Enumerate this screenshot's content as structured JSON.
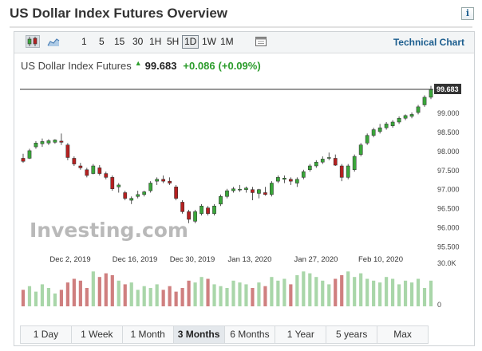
{
  "header": {
    "title": "US Dollar Index Futures Overview",
    "info_label": "i"
  },
  "toolbar": {
    "timeframes": [
      "1",
      "5",
      "15",
      "30",
      "1H",
      "5H",
      "1D",
      "1W",
      "1M"
    ],
    "active_timeframe": "1D",
    "technical_chart_link": "Technical Chart",
    "icons": [
      "candlestick-icon",
      "area-chart-icon",
      "calendar-icon"
    ]
  },
  "quote": {
    "name": "US Dollar Index Futures",
    "price": "99.683",
    "change": "+0.086",
    "change_pct": "(+0.09%)",
    "up_color": "#2ea02e"
  },
  "chart_data": {
    "type": "candlestick",
    "price_axis": {
      "ticks": [
        "99.000",
        "98.500",
        "98.000",
        "97.500",
        "97.000",
        "96.500",
        "96.000",
        "95.500"
      ],
      "min": 95.3,
      "max": 99.9
    },
    "current_price_label": "99.683",
    "date_labels": [
      "Dec 2, 2019",
      "Dec 16, 2019",
      "Dec 30, 2019",
      "Jan 13, 2020",
      "Jan 27, 2020",
      "Feb 10, 2020"
    ],
    "volume_axis": {
      "ticks": [
        "30.0K",
        "0"
      ]
    },
    "watermark": "Investing.com",
    "up_color": "#3aa63a",
    "down_color": "#b52020",
    "candles": [
      [
        97.8,
        97.92,
        97.68,
        97.72
      ],
      [
        97.8,
        98.05,
        97.78,
        98.0
      ],
      [
        98.1,
        98.25,
        98.05,
        98.2
      ],
      [
        98.18,
        98.32,
        98.1,
        98.24
      ],
      [
        98.2,
        98.3,
        98.15,
        98.26
      ],
      [
        98.22,
        98.3,
        98.18,
        98.28
      ],
      [
        98.25,
        98.45,
        98.15,
        98.22
      ],
      [
        98.15,
        98.2,
        97.75,
        97.82
      ],
      [
        97.8,
        97.85,
        97.6,
        97.65
      ],
      [
        97.6,
        97.68,
        97.5,
        97.55
      ],
      [
        97.5,
        97.55,
        97.3,
        97.35
      ],
      [
        97.4,
        97.65,
        97.38,
        97.6
      ],
      [
        97.55,
        97.62,
        97.35,
        97.4
      ],
      [
        97.4,
        97.45,
        97.25,
        97.3
      ],
      [
        97.3,
        97.35,
        96.95,
        97.0
      ],
      [
        97.05,
        97.15,
        96.9,
        97.1
      ],
      [
        96.9,
        96.95,
        96.7,
        96.75
      ],
      [
        96.7,
        96.8,
        96.6,
        96.75
      ],
      [
        96.8,
        96.95,
        96.75,
        96.85
      ],
      [
        96.85,
        96.95,
        96.8,
        96.92
      ],
      [
        96.95,
        97.2,
        96.9,
        97.15
      ],
      [
        97.2,
        97.3,
        97.1,
        97.25
      ],
      [
        97.25,
        97.35,
        97.15,
        97.2
      ],
      [
        97.2,
        97.3,
        97.1,
        97.15
      ],
      [
        97.05,
        97.1,
        96.7,
        96.75
      ],
      [
        96.65,
        96.7,
        96.35,
        96.4
      ],
      [
        96.4,
        96.45,
        96.1,
        96.2
      ],
      [
        96.15,
        96.45,
        96.1,
        96.4
      ],
      [
        96.35,
        96.6,
        96.3,
        96.55
      ],
      [
        96.5,
        96.55,
        96.3,
        96.35
      ],
      [
        96.35,
        96.6,
        96.3,
        96.55
      ],
      [
        96.6,
        96.85,
        96.55,
        96.8
      ],
      [
        96.8,
        97.0,
        96.75,
        96.95
      ],
      [
        96.95,
        97.05,
        96.9,
        97.0
      ],
      [
        96.98,
        97.1,
        96.92,
        96.99
      ],
      [
        96.98,
        97.06,
        96.9,
        97.02
      ],
      [
        96.98,
        97.05,
        96.7,
        96.9
      ],
      [
        96.88,
        97.0,
        96.75,
        96.98
      ],
      [
        96.9,
        97.05,
        96.82,
        96.85
      ],
      [
        96.85,
        97.2,
        96.8,
        97.15
      ],
      [
        97.2,
        97.35,
        97.15,
        97.3
      ],
      [
        97.25,
        97.35,
        97.15,
        97.28
      ],
      [
        97.25,
        97.3,
        97.1,
        97.2
      ],
      [
        97.15,
        97.3,
        97.05,
        97.25
      ],
      [
        97.3,
        97.5,
        97.25,
        97.45
      ],
      [
        97.5,
        97.65,
        97.45,
        97.6
      ],
      [
        97.6,
        97.75,
        97.55,
        97.7
      ],
      [
        97.7,
        97.85,
        97.65,
        97.78
      ],
      [
        97.8,
        97.95,
        97.75,
        97.82
      ],
      [
        97.8,
        97.9,
        97.6,
        97.62
      ],
      [
        97.6,
        97.65,
        97.2,
        97.3
      ],
      [
        97.3,
        97.65,
        97.25,
        97.6
      ],
      [
        97.5,
        97.9,
        97.45,
        97.85
      ],
      [
        97.9,
        98.2,
        97.85,
        98.15
      ],
      [
        98.2,
        98.45,
        98.15,
        98.4
      ],
      [
        98.4,
        98.6,
        98.35,
        98.55
      ],
      [
        98.5,
        98.7,
        98.45,
        98.6
      ],
      [
        98.6,
        98.75,
        98.55,
        98.7
      ],
      [
        98.65,
        98.8,
        98.6,
        98.75
      ],
      [
        98.75,
        98.9,
        98.7,
        98.85
      ],
      [
        98.85,
        98.95,
        98.8,
        98.92
      ],
      [
        98.9,
        99.0,
        98.85,
        98.95
      ],
      [
        99.0,
        99.2,
        98.95,
        99.15
      ],
      [
        99.2,
        99.45,
        99.15,
        99.4
      ],
      [
        99.4,
        99.7,
        99.35,
        99.6
      ]
    ],
    "volumes": [
      9,
      11,
      8,
      12,
      10,
      7,
      9,
      13,
      15,
      14,
      10,
      19,
      16,
      18,
      17,
      14,
      12,
      13,
      9,
      11,
      10,
      12,
      9,
      11,
      8,
      10,
      14,
      13,
      16,
      15,
      12,
      11,
      10,
      14,
      13,
      12,
      10,
      13,
      11,
      16,
      14,
      15,
      12,
      17,
      19,
      18,
      16,
      14,
      12,
      15,
      17,
      19,
      16,
      18,
      15,
      14,
      13,
      16,
      15,
      12,
      14,
      13,
      15,
      10,
      14
    ]
  },
  "range_tabs": [
    "1 Day",
    "1 Week",
    "1 Month",
    "3 Months",
    "6 Months",
    "1 Year",
    "5 years",
    "Max"
  ],
  "active_range": "3 Months"
}
